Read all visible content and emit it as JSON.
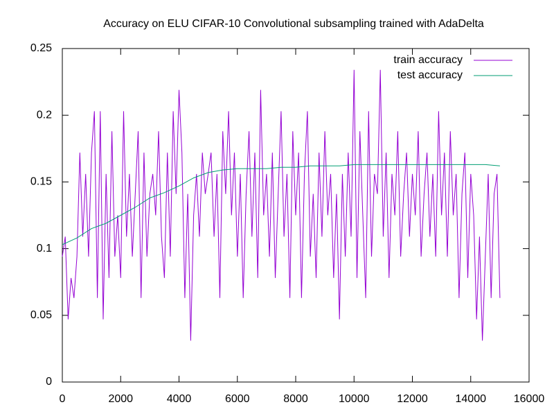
{
  "chart_data": {
    "type": "line",
    "title": "Accuracy on ELU CIFAR-10 Convolutional subsampling trained with AdaDelta",
    "xlim": [
      0,
      16000
    ],
    "xticks": [
      0,
      2000,
      4000,
      6000,
      8000,
      10000,
      12000,
      14000,
      16000
    ],
    "ylim": [
      0,
      0.25
    ],
    "yticks": [
      0,
      0.05,
      0.1,
      0.15,
      0.2,
      0.25
    ],
    "legend": "top-right",
    "series": [
      {
        "name": "train accuracy",
        "color": "#9400d3",
        "x": [
          0,
          100,
          200,
          300,
          400,
          500,
          600,
          700,
          800,
          900,
          1000,
          1100,
          1200,
          1300,
          1400,
          1500,
          1600,
          1700,
          1800,
          1900,
          2000,
          2100,
          2200,
          2300,
          2400,
          2500,
          2600,
          2700,
          2800,
          2900,
          3000,
          3100,
          3200,
          3300,
          3400,
          3500,
          3600,
          3700,
          3800,
          3900,
          4000,
          4100,
          4200,
          4300,
          4400,
          4500,
          4600,
          4700,
          4800,
          4900,
          5000,
          5100,
          5200,
          5300,
          5400,
          5500,
          5600,
          5700,
          5800,
          5900,
          6000,
          6100,
          6200,
          6300,
          6400,
          6500,
          6600,
          6700,
          6800,
          6900,
          7000,
          7100,
          7200,
          7300,
          7400,
          7500,
          7600,
          7700,
          7800,
          7900,
          8000,
          8100,
          8200,
          8300,
          8400,
          8500,
          8600,
          8700,
          8800,
          8900,
          9000,
          9100,
          9200,
          9300,
          9400,
          9500,
          9600,
          9700,
          9800,
          9900,
          10000,
          10100,
          10200,
          10300,
          10400,
          10500,
          10600,
          10700,
          10800,
          10900,
          11000,
          11100,
          11200,
          11300,
          11400,
          11500,
          11600,
          11700,
          11800,
          11900,
          12000,
          12100,
          12200,
          12300,
          12400,
          12500,
          12600,
          12700,
          12800,
          12900,
          13000,
          13100,
          13200,
          13300,
          13400,
          13500,
          13600,
          13700,
          13800,
          13900,
          14000,
          14100,
          14200,
          14300,
          14400,
          14500,
          14600,
          14700,
          14800,
          14900,
          15000
        ],
        "values": [
          0.094,
          0.109,
          0.047,
          0.078,
          0.063,
          0.094,
          0.172,
          0.109,
          0.156,
          0.094,
          0.172,
          0.203,
          0.063,
          0.203,
          0.047,
          0.156,
          0.078,
          0.188,
          0.094,
          0.125,
          0.078,
          0.203,
          0.109,
          0.156,
          0.094,
          0.141,
          0.188,
          0.063,
          0.172,
          0.094,
          0.141,
          0.156,
          0.125,
          0.188,
          0.109,
          0.078,
          0.172,
          0.094,
          0.203,
          0.141,
          0.219,
          0.172,
          0.063,
          0.141,
          0.031,
          0.125,
          0.156,
          0.109,
          0.172,
          0.141,
          0.156,
          0.172,
          0.109,
          0.156,
          0.063,
          0.188,
          0.141,
          0.203,
          0.125,
          0.172,
          0.094,
          0.156,
          0.063,
          0.141,
          0.188,
          0.109,
          0.172,
          0.078,
          0.219,
          0.125,
          0.156,
          0.094,
          0.172,
          0.078,
          0.141,
          0.203,
          0.109,
          0.156,
          0.063,
          0.188,
          0.125,
          0.172,
          0.063,
          0.156,
          0.203,
          0.094,
          0.141,
          0.078,
          0.172,
          0.109,
          0.188,
          0.125,
          0.156,
          0.078,
          0.141,
          0.047,
          0.156,
          0.094,
          0.172,
          0.109,
          0.234,
          0.078,
          0.188,
          0.125,
          0.063,
          0.203,
          0.094,
          0.156,
          0.141,
          0.234,
          0.109,
          0.172,
          0.078,
          0.156,
          0.125,
          0.188,
          0.094,
          0.141,
          0.172,
          0.109,
          0.156,
          0.125,
          0.188,
          0.094,
          0.141,
          0.172,
          0.109,
          0.156,
          0.094,
          0.203,
          0.125,
          0.172,
          0.094,
          0.188,
          0.125,
          0.156,
          0.063,
          0.141,
          0.172,
          0.078,
          0.156,
          0.125,
          0.047,
          0.109,
          0.031,
          0.094,
          0.156,
          0.063,
          0.141,
          0.156,
          0.063
        ]
      },
      {
        "name": "test accuracy",
        "color": "#009e73",
        "x": [
          0,
          500,
          1000,
          1500,
          2000,
          2500,
          3000,
          3500,
          4000,
          4500,
          5000,
          5500,
          6000,
          6500,
          7000,
          7500,
          8000,
          8500,
          9000,
          9500,
          10000,
          10500,
          11000,
          11500,
          12000,
          12500,
          13000,
          13500,
          14000,
          14500,
          15000
        ],
        "values": [
          0.103,
          0.108,
          0.115,
          0.119,
          0.125,
          0.131,
          0.138,
          0.142,
          0.147,
          0.153,
          0.157,
          0.159,
          0.16,
          0.16,
          0.16,
          0.161,
          0.161,
          0.162,
          0.162,
          0.162,
          0.163,
          0.163,
          0.163,
          0.163,
          0.163,
          0.163,
          0.163,
          0.163,
          0.163,
          0.163,
          0.162
        ]
      }
    ]
  }
}
